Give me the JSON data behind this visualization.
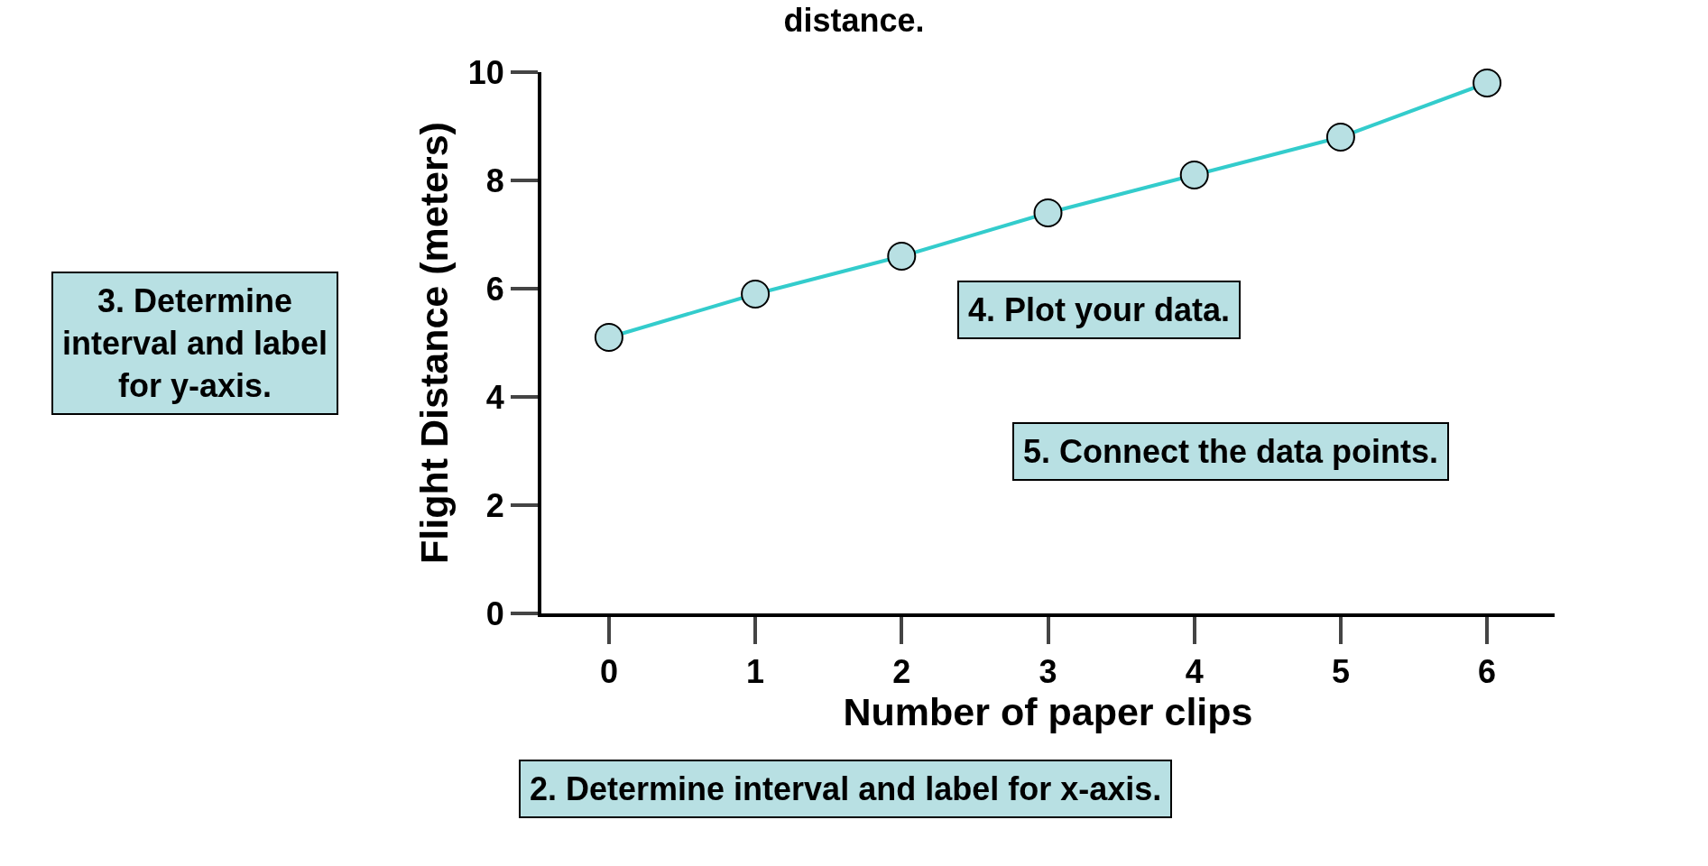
{
  "chart_data": {
    "type": "line",
    "title": "distance.",
    "xlabel": "Number of paper clips",
    "ylabel": "Flight Distance (meters)",
    "categories": [
      "0",
      "1",
      "2",
      "3",
      "4",
      "5",
      "6"
    ],
    "series": [
      {
        "color": "#33cccc",
        "values": [
          5.1,
          5.9,
          6.6,
          7.4,
          8.1,
          8.8,
          9.8
        ]
      }
    ],
    "ylim": [
      0,
      10
    ],
    "yticks": [
      0,
      2,
      4,
      6,
      8,
      10
    ],
    "marker": "circle",
    "line_style": "solid",
    "annotations": [
      "3. Determine interval and label for y-axis.",
      "4. Plot your data.",
      "5. Connect the data points.",
      "2. Determine interval and label for x-axis."
    ]
  }
}
